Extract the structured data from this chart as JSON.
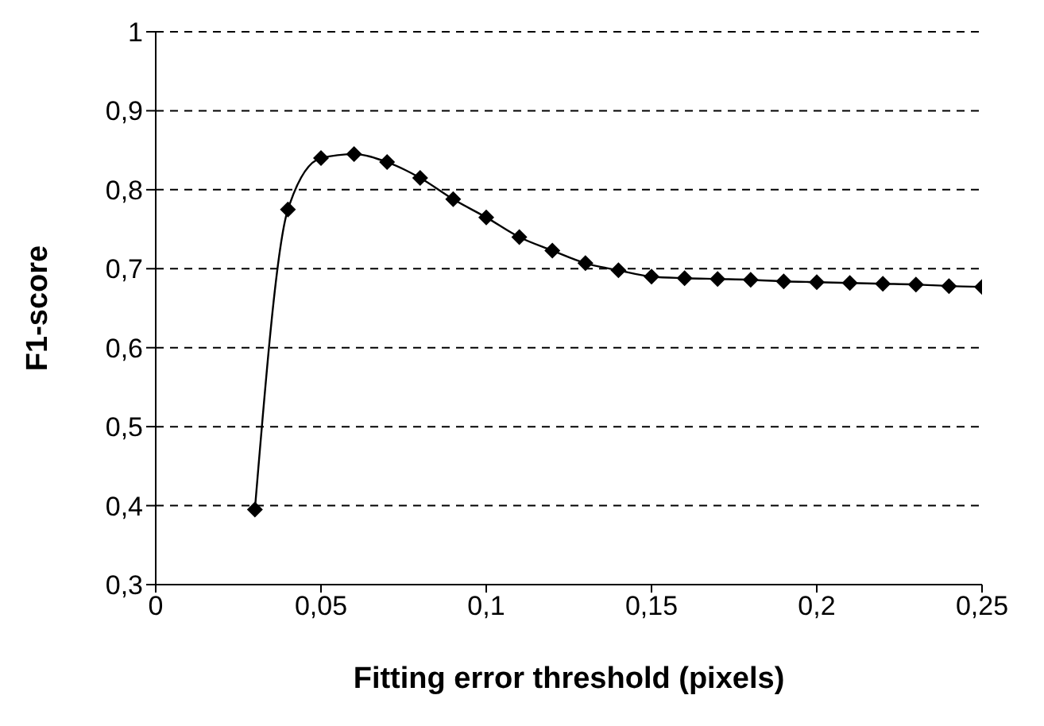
{
  "chart_data": {
    "type": "line",
    "xlabel": "Fitting error threshold (pixels)",
    "ylabel": "F1-score",
    "x": [
      0.03,
      0.04,
      0.05,
      0.06,
      0.07,
      0.08,
      0.09,
      0.1,
      0.11,
      0.12,
      0.13,
      0.14,
      0.15,
      0.16,
      0.17,
      0.18,
      0.19,
      0.2,
      0.21,
      0.22,
      0.23,
      0.24,
      0.25
    ],
    "series": [
      {
        "color": "#000000",
        "values": [
          0.395,
          0.775,
          0.84,
          0.845,
          0.835,
          0.815,
          0.788,
          0.765,
          0.74,
          0.723,
          0.707,
          0.698,
          0.69,
          0.688,
          0.687,
          0.686,
          0.684,
          0.683,
          0.682,
          0.681,
          0.68,
          0.678,
          0.677
        ]
      }
    ],
    "xlim": [
      0,
      0.25
    ],
    "xticks": [
      0,
      {
        "value": 0.05,
        "label": "0,05"
      },
      {
        "value": 0.1,
        "label": "0,1"
      },
      {
        "value": 0.15,
        "label": "0,15"
      },
      {
        "value": 0.2,
        "label": "0,2"
      },
      {
        "value": 0.25,
        "label": "0,25"
      }
    ],
    "ylim": [
      0.3,
      1
    ],
    "yticks": [
      {
        "value": 0.3,
        "label": "0,3"
      },
      {
        "value": 0.4,
        "label": "0,4"
      },
      {
        "value": 0.5,
        "label": "0,5"
      },
      {
        "value": 0.6,
        "label": "0,6"
      },
      {
        "value": 0.7,
        "label": "0,7"
      },
      {
        "value": 0.8,
        "label": "0,8"
      },
      {
        "value": 0.9,
        "label": "0,9"
      },
      1
    ],
    "grid": "y",
    "marker": "diamond",
    "line_style": "solid",
    "legend": false
  }
}
